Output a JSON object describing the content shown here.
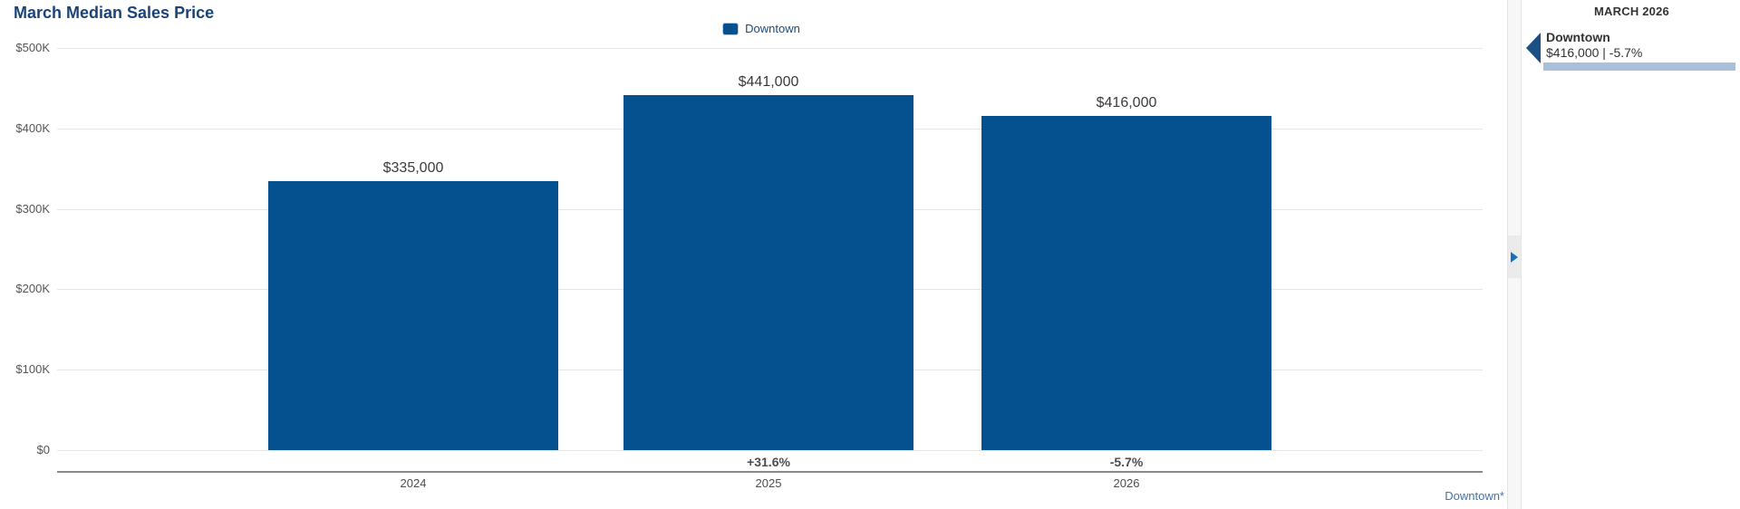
{
  "chart_data": {
    "type": "bar",
    "title": "March Median Sales Price",
    "categories": [
      "2024",
      "2025",
      "2026"
    ],
    "series": [
      {
        "name": "Downtown",
        "values": [
          335000,
          441000,
          416000
        ]
      }
    ],
    "value_labels": [
      "$335,000",
      "$441,000",
      "$416,000"
    ],
    "change_labels": [
      "",
      "+31.6%",
      "-5.7%"
    ],
    "y_tick_labels": [
      "$500K",
      "$400K",
      "$300K",
      "$200K",
      "$100K",
      "$0"
    ],
    "y_tick_values": [
      500000,
      400000,
      300000,
      200000,
      100000,
      0
    ],
    "ylim": [
      0,
      500000
    ],
    "grid": true,
    "legend_position": "top-center",
    "bar_color": "#05508f",
    "footnote_link": "Downtown*"
  },
  "side_panel": {
    "header": "MARCH 2026",
    "entries": [
      {
        "name": "Downtown",
        "detail": "$416,000 | -5.7%"
      }
    ],
    "accent_bar_color": "#a9c0da",
    "marker_color": "#1d4f87"
  },
  "divider": {
    "expand_icon": "right-arrow"
  }
}
